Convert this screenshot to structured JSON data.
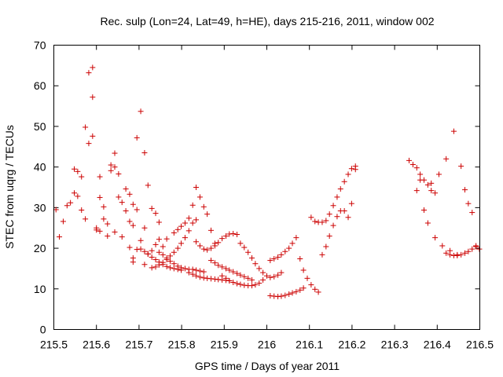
{
  "chart_data": {
    "type": "scatter",
    "title": "Rec. sulp (Lon=24, Lat=49, h=HE), days 215-216, 2011, window 002",
    "xlabel": "GPS time / Days of year 2011",
    "ylabel": "STEC from uqrg / TECUs",
    "xlim": [
      215.5,
      216.5
    ],
    "ylim": [
      0,
      70
    ],
    "xticks": [
      215.5,
      215.6,
      215.7,
      215.8,
      215.9,
      216,
      216.1,
      216.2,
      216.3,
      216.4,
      216.5
    ],
    "xtick_labels": [
      "215.5",
      "215.6",
      "215.7",
      "215.8",
      "215.9",
      "216",
      "216.1",
      "216.2",
      "216.3",
      "216.4",
      "216.5"
    ],
    "yticks": [
      0,
      10,
      20,
      30,
      40,
      50,
      60,
      70
    ],
    "ytick_labels": [
      "0",
      "10",
      "20",
      "30",
      "40",
      "50",
      "60",
      "70"
    ],
    "grid": false,
    "legend": "none",
    "marker": "plus",
    "color": "#cc0000",
    "series": [
      {
        "x": [
          215.505,
          215.513,
          215.522,
          215.531,
          215.539,
          215.548,
          215.556,
          215.548,
          215.556,
          215.565,
          215.574,
          215.582,
          215.591,
          215.565,
          215.574,
          215.582,
          215.591,
          215.6,
          215.608,
          215.591,
          215.6,
          215.608,
          215.617,
          215.626,
          215.634,
          215.643,
          215.608,
          215.617,
          215.626,
          215.634,
          215.643,
          215.652,
          215.643,
          215.652,
          215.66,
          215.669,
          215.678,
          215.686,
          215.66,
          215.669,
          215.678,
          215.686,
          215.695,
          215.678,
          215.686,
          215.695,
          215.704,
          215.713,
          215.686,
          215.695,
          215.704,
          215.713,
          215.721,
          215.73,
          215.739,
          215.747,
          215.713,
          215.721,
          215.73,
          215.739,
          215.747,
          215.756,
          215.765,
          215.704,
          215.713,
          215.721,
          215.73,
          215.739,
          215.747,
          215.756,
          215.765,
          215.773,
          215.782,
          215.791,
          215.799,
          215.73,
          215.739,
          215.747,
          215.756,
          215.765,
          215.773,
          215.782,
          215.791,
          215.799,
          215.808,
          215.817,
          215.826,
          215.834,
          215.747,
          215.756,
          215.765,
          215.773,
          215.782,
          215.791,
          215.799,
          215.808,
          215.817,
          215.826,
          215.834,
          215.843,
          215.852,
          215.782,
          215.791,
          215.799,
          215.808,
          215.817,
          215.826,
          215.834,
          215.843,
          215.852,
          215.86,
          215.869,
          215.878,
          215.817,
          215.826,
          215.834,
          215.843,
          215.852,
          215.86,
          215.869,
          215.878,
          215.886,
          215.895,
          215.904,
          215.912,
          215.834,
          215.843,
          215.852,
          215.86,
          215.869,
          215.878,
          215.886,
          215.895,
          215.904,
          215.912,
          215.921,
          215.93,
          215.869,
          215.878,
          215.886,
          215.895,
          215.904,
          215.912,
          215.921,
          215.93,
          215.938,
          215.947,
          215.956,
          215.965,
          215.895,
          215.904,
          215.912,
          215.921,
          215.93,
          215.938,
          215.947,
          215.956,
          215.965,
          215.973,
          215.982,
          215.991,
          215.938,
          215.947,
          215.956,
          215.965,
          215.973,
          215.982,
          215.991,
          216.0,
          216.008,
          216.017,
          216.026,
          216.034,
          216.008,
          216.017,
          216.026,
          216.034,
          216.043,
          216.052,
          216.06,
          216.069,
          216.078,
          216.086,
          216.008,
          216.017,
          216.026,
          216.034,
          216.043,
          216.052,
          216.06,
          216.069,
          216.078,
          216.086,
          216.095,
          216.104,
          216.113,
          216.121,
          216.104,
          216.113,
          216.121,
          216.13,
          216.139,
          216.147,
          216.156,
          216.165,
          216.173,
          216.182,
          216.191,
          216.199,
          216.208,
          216.13,
          216.139,
          216.147,
          216.156,
          216.165,
          216.173,
          216.182,
          216.191,
          216.199,
          216.208,
          216.334,
          216.343,
          216.352,
          216.36,
          216.369,
          216.378,
          216.386,
          216.395,
          216.352,
          216.36,
          216.369,
          216.378,
          216.386,
          216.395,
          216.404,
          216.412,
          216.421,
          216.43,
          216.439,
          216.447,
          216.456,
          216.465,
          216.473,
          216.482,
          216.491,
          216.499,
          216.421,
          216.43,
          216.439,
          216.447,
          216.456,
          216.465,
          216.473,
          216.482,
          216.491
        ],
        "y": [
          29.5,
          22.8,
          26.6,
          30.5,
          31.2,
          33.6,
          32.8,
          39.5,
          38.9,
          37.6,
          49.8,
          45.8,
          57.2,
          29.4,
          27.2,
          63.2,
          64.5,
          25.0,
          24.2,
          47.6,
          24.5,
          37.6,
          30.2,
          26.0,
          39.1,
          43.4,
          32.5,
          27.2,
          23.0,
          40.5,
          40.0,
          38.3,
          24.0,
          32.6,
          31.3,
          29.2,
          26.6,
          25.6,
          22.8,
          34.6,
          33.3,
          30.8,
          29.5,
          20.2,
          17.6,
          47.2,
          53.7,
          43.5,
          16.6,
          19.7,
          21.9,
          25.0,
          35.5,
          29.8,
          28.6,
          26.4,
          16.0,
          18.6,
          19.4,
          20.9,
          22.2,
          20.4,
          22.3,
          19.8,
          19.2,
          18.6,
          17.8,
          17.2,
          16.6,
          16.0,
          15.5,
          15.2,
          15.0,
          14.8,
          14.6,
          15.2,
          15.4,
          15.9,
          16.5,
          17.2,
          18.1,
          19.0,
          20.0,
          21.2,
          22.6,
          24.3,
          26.2,
          27.0,
          19.0,
          18.4,
          17.6,
          16.8,
          16.2,
          15.6,
          15.2,
          15.0,
          14.8,
          14.8,
          14.6,
          14.4,
          14.2,
          23.8,
          24.6,
          25.4,
          26.2,
          27.4,
          30.6,
          35.0,
          32.6,
          30.2,
          28.4,
          24.4,
          21.2,
          14.0,
          13.6,
          13.2,
          12.9,
          12.7,
          12.6,
          12.5,
          12.4,
          12.3,
          12.2,
          12.1,
          12.0,
          21.6,
          20.6,
          19.8,
          19.6,
          20.0,
          20.6,
          21.4,
          22.4,
          23.0,
          23.5,
          23.6,
          23.4,
          17.0,
          16.4,
          15.8,
          15.4,
          15.0,
          14.6,
          14.2,
          13.8,
          13.4,
          13.0,
          12.6,
          12.2,
          13.2,
          12.6,
          12.0,
          11.6,
          11.3,
          11.1,
          10.9,
          10.8,
          10.8,
          11.0,
          11.4,
          12.2,
          21.2,
          20.2,
          19.0,
          17.6,
          16.2,
          15.0,
          14.0,
          13.2,
          12.8,
          13.0,
          13.4,
          14.0,
          8.3,
          8.2,
          8.1,
          8.2,
          8.4,
          8.7,
          9.0,
          9.3,
          9.7,
          10.2,
          17.0,
          17.4,
          17.8,
          18.4,
          19.2,
          20.0,
          21.2,
          22.6,
          17.4,
          14.6,
          12.6,
          11.0,
          9.9,
          9.2,
          27.6,
          26.6,
          26.4,
          26.4,
          26.8,
          28.4,
          30.5,
          32.6,
          34.6,
          36.4,
          38.2,
          39.6,
          40.2,
          18.4,
          20.4,
          23.0,
          25.6,
          27.8,
          29.2,
          29.2,
          27.6,
          31.0,
          39.4,
          41.6,
          40.6,
          39.8,
          38.2,
          36.8,
          35.6,
          34.2,
          33.6,
          34.2,
          36.8,
          29.4,
          26.2,
          36.0,
          22.6,
          38.2,
          20.6,
          42.0,
          19.4,
          48.8,
          18.4,
          40.2,
          34.4,
          31.0,
          28.8,
          20.6,
          19.8,
          18.8,
          18.4,
          18.2,
          18.2,
          18.4,
          18.8,
          19.2,
          19.8,
          20.4
        ]
      }
    ]
  }
}
